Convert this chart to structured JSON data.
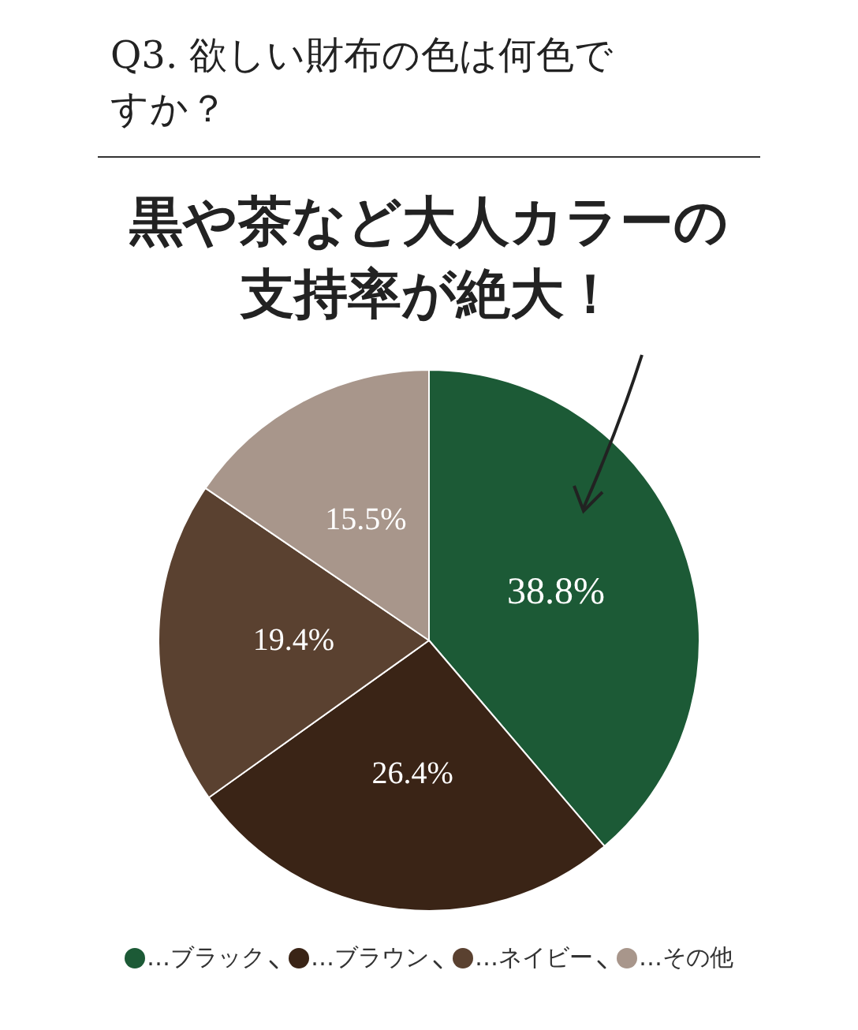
{
  "chart_data": {
    "type": "pie",
    "title": "Q3. 欲しい財布の色は何色ですか？",
    "subtitle": "黒や茶など大人カラーの支持率が絶大！",
    "categories": [
      "…ブラック",
      "…ブラウン",
      "…ネイビー",
      "…その他"
    ],
    "values": [
      38.8,
      26.4,
      19.4,
      15.5
    ],
    "value_labels": [
      "38.8%",
      "26.4%",
      "19.4%",
      "15.5%"
    ],
    "colors": [
      "#1c5a36",
      "#3a2416",
      "#5a4130",
      "#a8968b"
    ],
    "legend": "bottom"
  }
}
